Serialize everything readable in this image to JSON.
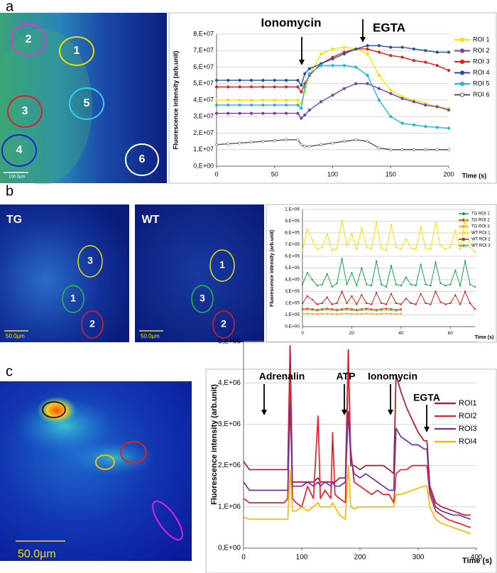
{
  "figure": {
    "panels": [
      {
        "label": "a",
        "roi_labels": [
          "1",
          "2",
          "3",
          "4",
          "5",
          "6"
        ],
        "scale_bar": "100.0µm"
      },
      {
        "label": "b",
        "image_titles": [
          "TG",
          "WT"
        ],
        "tg_roi_labels": [
          "3",
          "1",
          "2"
        ],
        "wt_roi_labels": [
          "1",
          "3",
          "2"
        ],
        "scale_bars": [
          "50.0µm",
          "50.0µm"
        ]
      },
      {
        "label": "c",
        "scale_bar": "50.0µm"
      }
    ]
  },
  "chart_data": [
    {
      "type": "line",
      "y_label": "Fluorescence intensity (arb.unit)",
      "x_label": "Time (s)",
      "annotations": [
        "Ionomycin",
        "EGTA"
      ],
      "grid": true,
      "legend": "right",
      "xlim": [
        0,
        200
      ],
      "xticks": [
        0,
        50,
        100,
        150,
        200
      ],
      "ylim": [
        0,
        80000000.0
      ],
      "yticks": [
        {
          "value": 0,
          "label": "0,E+00"
        },
        {
          "value": 10000000.0,
          "label": "1,E+07"
        },
        {
          "value": 20000000.0,
          "label": "2,E+07"
        },
        {
          "value": 30000000.0,
          "label": "3,E+07"
        },
        {
          "value": 40000000.0,
          "label": "4,E+07"
        },
        {
          "value": 50000000.0,
          "label": "5,E+07"
        },
        {
          "value": 60000000.0,
          "label": "6,E+07"
        },
        {
          "value": 70000000.0,
          "label": "7,E+07"
        },
        {
          "value": 80000000.0,
          "label": "8,E+07"
        }
      ],
      "x": [
        0,
        10,
        20,
        30,
        40,
        50,
        60,
        70,
        73,
        76,
        80,
        90,
        100,
        110,
        120,
        130,
        140,
        150,
        160,
        170,
        180,
        190,
        200
      ],
      "series": [
        {
          "name": "ROI 1",
          "color": "#f2e600",
          "values": [
            40000000.0,
            40000000.0,
            40000000.0,
            40000000.0,
            40000000.0,
            40000000.0,
            40000000.0,
            40000000.0,
            38000000.0,
            45000000.0,
            55000000.0,
            68000000.0,
            71000000.0,
            72000000.0,
            71000000.0,
            68000000.0,
            55000000.0,
            46000000.0,
            42000000.0,
            40000000.0,
            38000000.0,
            36000000.0,
            35000000.0
          ]
        },
        {
          "name": "ROI 2",
          "color": "#7a3fa8",
          "values": [
            32000000.0,
            32000000.0,
            32000000.0,
            32000000.0,
            32000000.0,
            32000000.0,
            32000000.0,
            32000000.0,
            29000000.0,
            31000000.0,
            34000000.0,
            39000000.0,
            43000000.0,
            47000000.0,
            50000000.0,
            50000000.0,
            47000000.0,
            44000000.0,
            41000000.0,
            39000000.0,
            37000000.0,
            36000000.0,
            34000000.0
          ]
        },
        {
          "name": "ROI 3",
          "color": "#e02020",
          "values": [
            48000000.0,
            48000000.0,
            48000000.0,
            48000000.0,
            48000000.0,
            48000000.0,
            48000000.0,
            48000000.0,
            45000000.0,
            50000000.0,
            55000000.0,
            62000000.0,
            66000000.0,
            69000000.0,
            71000000.0,
            71000000.0,
            69000000.0,
            67000000.0,
            66000000.0,
            64000000.0,
            63000000.0,
            61000000.0,
            58000000.0
          ]
        },
        {
          "name": "ROI 4",
          "color": "#2a4d9a",
          "values": [
            52000000.0,
            52000000.0,
            52000000.0,
            52000000.0,
            52000000.0,
            52000000.0,
            52000000.0,
            52000000.0,
            49000000.0,
            56000000.0,
            59000000.0,
            62000000.0,
            65000000.0,
            68000000.0,
            71000000.0,
            73000000.0,
            73000000.0,
            72000000.0,
            72000000.0,
            71000000.0,
            70000000.0,
            69000000.0,
            69000000.0
          ]
        },
        {
          "name": "ROI 5",
          "color": "#23b5e0",
          "values": [
            37000000.0,
            37000000.0,
            37000000.0,
            37000000.0,
            37000000.0,
            37000000.0,
            37000000.0,
            37000000.0,
            35000000.0,
            48000000.0,
            56000000.0,
            61000000.0,
            61000000.0,
            61000000.0,
            60000000.0,
            55000000.0,
            40000000.0,
            30000000.0,
            26000000.0,
            25000000.0,
            24000000.0,
            23500000.0,
            23000000.0
          ]
        },
        {
          "name": "ROI 6",
          "color": "#555555",
          "marker_fill": "#ffffff",
          "values": [
            13000000.0,
            13500000.0,
            14000000.0,
            14500000.0,
            15000000.0,
            15500000.0,
            16000000.0,
            16000000.0,
            13000000.0,
            12000000.0,
            12000000.0,
            13000000.0,
            14000000.0,
            15000000.0,
            16000000.0,
            15000000.0,
            11000000.0,
            10000000.0,
            10000000.0,
            10000000.0,
            10000000.0,
            10000000.0,
            10000000.0
          ]
        }
      ]
    },
    {
      "type": "line",
      "y_label": "Fluorescence intensity (arb.unit)",
      "x_label": "Time (s)",
      "grid": true,
      "legend": "right",
      "xlim": [
        0,
        70
      ],
      "xticks": [
        0,
        20,
        40,
        60
      ],
      "ylim": [
        0,
        1000000.0
      ],
      "yticks": [
        {
          "value": 0,
          "label": "0,E+00"
        },
        {
          "value": 100000.0,
          "label": "1,E+05"
        },
        {
          "value": 200000.0,
          "label": "2,E+05"
        },
        {
          "value": 300000.0,
          "label": "3,E+05"
        },
        {
          "value": 400000.0,
          "label": "4,E+05"
        },
        {
          "value": 500000.0,
          "label": "5,E+05"
        },
        {
          "value": 600000.0,
          "label": "6,E+05"
        },
        {
          "value": 700000.0,
          "label": "7,E+05"
        },
        {
          "value": 800000.0,
          "label": "8,E+05"
        },
        {
          "value": 900000.0,
          "label": "9,E+05"
        },
        {
          "value": 1000000.0,
          "label": "1,E+06"
        }
      ],
      "x": [
        0,
        2,
        4,
        6,
        8,
        10,
        12,
        14,
        16,
        18,
        20,
        22,
        24,
        26,
        28,
        30,
        32,
        34,
        36,
        38,
        40,
        42,
        44,
        46,
        48,
        50,
        52,
        54,
        56,
        58,
        60,
        62,
        64,
        66,
        68,
        70
      ],
      "series": [
        {
          "name": "TG ROI 1",
          "color": "#1aa64a",
          "values": [
            360000.0,
            460000.0,
            400000.0,
            350000.0,
            360000.0,
            450000.0,
            340000.0,
            370000.0,
            580000.0,
            360000.0,
            460000.0,
            350000.0,
            500000.0,
            360000.0,
            350000.0,
            560000.0,
            360000.0,
            340000.0,
            520000.0,
            360000.0,
            350000.0,
            420000.0,
            360000.0,
            350000.0,
            530000.0,
            360000.0,
            350000.0,
            550000.0,
            370000.0,
            350000.0,
            360000.0,
            480000.0,
            350000.0,
            560000.0,
            360000.0,
            340000.0
          ]
        },
        {
          "name": "TG ROI 2",
          "color": "#e8351e",
          "values": [
            150000.0,
            155000.0,
            150000.0,
            145000.0,
            150000.0,
            155000.0,
            150000.0,
            145000.0,
            150000.0,
            155000.0,
            150000.0,
            145000.0,
            150000.0,
            155000.0,
            150000.0,
            145000.0,
            150000.0,
            155000.0,
            150000.0,
            145000.0,
            150000.0,
            null,
            null,
            null,
            null,
            null,
            null,
            null,
            null,
            null,
            null,
            null,
            null,
            null,
            null,
            null
          ]
        },
        {
          "name": "TG ROI 3",
          "color": "#f0a020",
          "values": [
            110000.0,
            112000.0,
            110000.0,
            108000.0,
            110000.0,
            112000.0,
            110000.0,
            108000.0,
            110000.0,
            112000.0,
            110000.0,
            108000.0,
            110000.0,
            112000.0,
            110000.0,
            108000.0,
            110000.0,
            112000.0,
            110000.0,
            108000.0,
            110000.0,
            null,
            null,
            null,
            null,
            null,
            null,
            null,
            null,
            null,
            null,
            null,
            null,
            null,
            null,
            null
          ]
        },
        {
          "name": "WT ROI 1",
          "color": "#f5e000",
          "values": [
            650000.0,
            830000.0,
            740000.0,
            660000.0,
            680000.0,
            790000.0,
            650000.0,
            670000.0,
            910000.0,
            690000.0,
            790000.0,
            660000.0,
            840000.0,
            680000.0,
            660000.0,
            890000.0,
            670000.0,
            650000.0,
            870000.0,
            680000.0,
            660000.0,
            750000.0,
            670000.0,
            660000.0,
            850000.0,
            670000.0,
            660000.0,
            890000.0,
            690000.0,
            660000.0,
            680000.0,
            820000.0,
            660000.0,
            910000.0,
            680000.0,
            640000.0
          ]
        },
        {
          "name": "WT ROI 2",
          "color": "#d0201a",
          "values": [
            200000.0,
            260000.0,
            230000.0,
            190000.0,
            200000.0,
            250000.0,
            190000.0,
            200000.0,
            300000.0,
            200000.0,
            260000.0,
            190000.0,
            270000.0,
            200000.0,
            190000.0,
            290000.0,
            200000.0,
            190000.0,
            280000.0,
            200000.0,
            190000.0,
            240000.0,
            200000.0,
            190000.0,
            280000.0,
            200000.0,
            190000.0,
            300000.0,
            210000.0,
            190000.0,
            200000.0,
            270000.0,
            190000.0,
            300000.0,
            200000.0,
            150000.0
          ]
        },
        {
          "name": "WT ROI 3",
          "color": "#6fb83a",
          "values": [
            140000.0,
            145000.0,
            140000.0,
            135000.0,
            140000.0,
            145000.0,
            140000.0,
            135000.0,
            140000.0,
            145000.0,
            140000.0,
            135000.0,
            140000.0,
            145000.0,
            140000.0,
            135000.0,
            140000.0,
            145000.0,
            140000.0,
            135000.0,
            140000.0,
            null,
            null,
            null,
            null,
            null,
            null,
            null,
            null,
            null,
            null,
            null,
            null,
            null,
            null,
            null
          ]
        }
      ]
    },
    {
      "type": "line",
      "y_label": "Fluorescence intensity (arb.unit)",
      "x_label": "Time (s)",
      "annotations": [
        "Adrenalin",
        "ATP",
        "Ionomycin",
        "EGTA"
      ],
      "grid": true,
      "legend": "right",
      "xlim": [
        0,
        400
      ],
      "xticks": [
        0,
        100,
        200,
        300,
        400
      ],
      "ylim": [
        0,
        5000000.0
      ],
      "yticks": [
        {
          "value": 0,
          "label": "0,E+00"
        },
        {
          "value": 1000000.0,
          "label": "1,E+06"
        },
        {
          "value": 2000000.0,
          "label": "2,E+06"
        },
        {
          "value": 3000000.0,
          "label": "3,E+06"
        },
        {
          "value": 4000000.0,
          "label": "4,E+06"
        },
        {
          "value": 5000000.0,
          "label": "5,E+06"
        }
      ],
      "x": [
        0,
        10,
        20,
        30,
        40,
        50,
        60,
        70,
        76,
        80,
        84,
        90,
        100,
        110,
        120,
        128,
        132,
        140,
        150,
        153,
        157,
        165,
        175,
        180,
        184,
        190,
        200,
        210,
        220,
        230,
        240,
        250,
        258,
        262,
        270,
        280,
        290,
        300,
        310,
        315,
        320,
        330,
        340,
        350,
        360,
        370,
        380,
        390
      ],
      "series": [
        {
          "name": "ROI1",
          "color": "#b0182a",
          "values": [
            2100000.0,
            1900000.0,
            1900000.0,
            1900000.0,
            1900000.0,
            1900000.0,
            1900000.0,
            1900000.0,
            1900000.0,
            4900000.0,
            1600000.0,
            1600000.0,
            1600000.0,
            1600000.0,
            1600000.0,
            1700000.0,
            1600000.0,
            1600000.0,
            1600000.0,
            1600000.0,
            1600000.0,
            1700000.0,
            1700000.0,
            4800000.0,
            2000000.0,
            2000000.0,
            1900000.0,
            2000000.0,
            2000000.0,
            2000000.0,
            2000000.0,
            1900000.0,
            1800000.0,
            4200000.0,
            3800000.0,
            3400000.0,
            3100000.0,
            2800000.0,
            2600000.0,
            2600000.0,
            1500000.0,
            1100000.0,
            1000000.0,
            950000.0,
            900000.0,
            850000.0,
            800000.0,
            800000.0
          ]
        },
        {
          "name": "ROI2",
          "color": "#e8202a",
          "values": [
            1200000.0,
            1100000.0,
            1100000.0,
            1100000.0,
            1100000.0,
            1100000.0,
            1100000.0,
            1100000.0,
            1200000.0,
            4300000.0,
            1200000.0,
            1100000.0,
            1000000.0,
            1500000.0,
            1200000.0,
            3200000.0,
            1200000.0,
            1400000.0,
            1200000.0,
            2800000.0,
            1300000.0,
            1200000.0,
            1100000.0,
            4600000.0,
            2400000.0,
            1600000.0,
            1500000.0,
            1400000.0,
            1300000.0,
            1400000.0,
            1300000.0,
            1300000.0,
            1100000.0,
            1800000.0,
            1900000.0,
            1900000.0,
            2000000.0,
            2000000.0,
            2000000.0,
            2000000.0,
            1300000.0,
            900000.0,
            800000.0,
            700000.0,
            650000.0,
            600000.0,
            550000.0,
            500000.0
          ]
        },
        {
          "name": "ROI3",
          "color": "#7030a0",
          "values": [
            1600000.0,
            1400000.0,
            1400000.0,
            1400000.0,
            1400000.0,
            1400000.0,
            1400000.0,
            1400000.0,
            1400000.0,
            3500000.0,
            1500000.0,
            1500000.0,
            1500000.0,
            1600000.0,
            1500000.0,
            1600000.0,
            1500000.0,
            1600000.0,
            1500000.0,
            1600000.0,
            1500000.0,
            1500000.0,
            1600000.0,
            3300000.0,
            2200000.0,
            1800000.0,
            1700000.0,
            1800000.0,
            1700000.0,
            1600000.0,
            1500000.0,
            1400000.0,
            1400000.0,
            2900000.0,
            2700000.0,
            2600000.0,
            2500000.0,
            2500000.0,
            2400000.0,
            2400000.0,
            1400000.0,
            1000000.0,
            900000.0,
            850000.0,
            800000.0,
            800000.0,
            750000.0,
            700000.0
          ]
        },
        {
          "name": "ROI4",
          "color": "#f5b800",
          "values": [
            750000.0,
            700000.0,
            700000.0,
            700000.0,
            700000.0,
            700000.0,
            700000.0,
            700000.0,
            700000.0,
            1900000.0,
            900000.0,
            900000.0,
            1000000.0,
            900000.0,
            1000000.0,
            1100000.0,
            1000000.0,
            1000000.0,
            1000000.0,
            1100000.0,
            1000000.0,
            800000.0,
            700000.0,
            2000000.0,
            1000000.0,
            950000.0,
            1000000.0,
            1000000.0,
            1000000.0,
            1000000.0,
            1000000.0,
            1000000.0,
            1000000.0,
            1300000.0,
            1300000.0,
            1350000.0,
            1400000.0,
            1450000.0,
            1500000.0,
            1500000.0,
            1000000.0,
            700000.0,
            600000.0,
            550000.0,
            500000.0,
            450000.0,
            400000.0,
            350000.0
          ]
        }
      ]
    }
  ]
}
